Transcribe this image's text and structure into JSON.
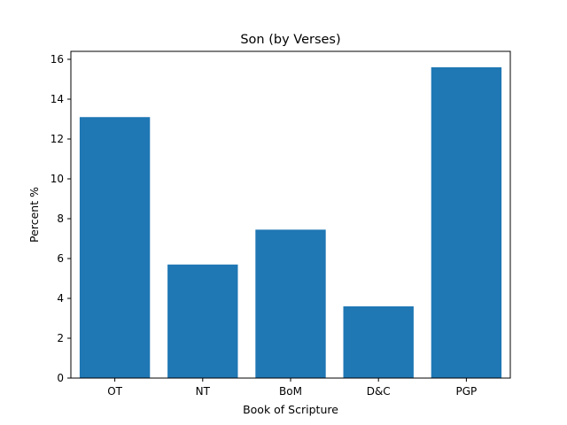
{
  "chart_data": {
    "type": "bar",
    "title": "Son (by Verses)",
    "xlabel": "Book of Scripture",
    "ylabel": "Percent %",
    "categories": [
      "OT",
      "NT",
      "BoM",
      "D&C",
      "PGP"
    ],
    "values": [
      13.1,
      5.7,
      7.45,
      3.6,
      15.6
    ],
    "ylim": [
      0,
      16.4
    ],
    "yticks": [
      0,
      2,
      4,
      6,
      8,
      10,
      12,
      14,
      16
    ],
    "bar_color": "#1f77b4",
    "grid": false,
    "legend": "none"
  }
}
